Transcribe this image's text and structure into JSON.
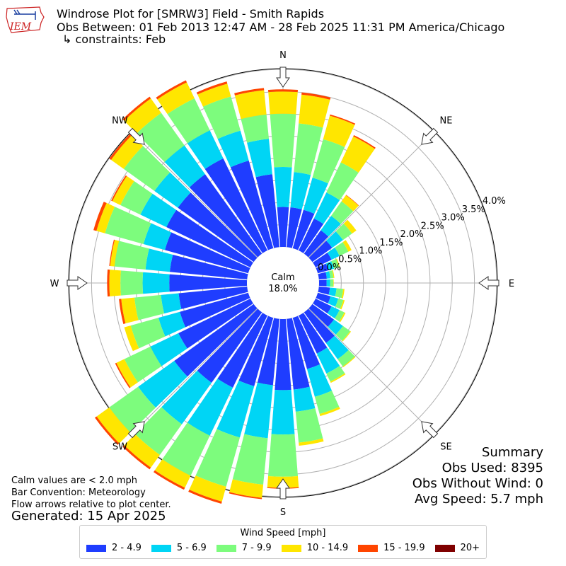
{
  "header": {
    "title": "Windrose Plot for [SMRW3] Field - Smith Rapids",
    "obs_between": "Obs Between: 01 Feb 2013 12:47 AM - 28 Feb 2025 11:31 PM America/Chicago",
    "constraints": "↳ constraints: Feb",
    "logo_text": "IEM"
  },
  "summary": {
    "heading": "Summary",
    "obs_used": "Obs Used: 8395",
    "obs_without_wind": "Obs Without Wind: 0",
    "avg_speed": "Avg Speed: 5.7 mph"
  },
  "notes": {
    "calm_def": "Calm values are < 2.0 mph",
    "bar_convention": "Bar Convention: Meteorology",
    "flow_arrows": "Flow arrows relative to plot center.",
    "generated": "Generated: 15 Apr 2025"
  },
  "colors": {
    "background": "#ffffff",
    "grid": "#b0b0b0",
    "arrow_fill": "#ffffff",
    "arrow_stroke": "#333333",
    "logo_red": "#cc2222",
    "logo_blue": "#1a3fa0"
  },
  "chart_data": {
    "type": "windrose",
    "calm_label": "Calm",
    "calm_value": "18.0%",
    "radial_unit": "percent",
    "radial_ticks": [
      "0.0%",
      "0.5%",
      "1.0%",
      "1.5%",
      "2.0%",
      "2.5%",
      "3.0%",
      "3.5%",
      "4.0%"
    ],
    "radial_max": 4.0,
    "compass_labels": [
      "N",
      "NE",
      "E",
      "SE",
      "S",
      "SW",
      "W",
      "NW"
    ],
    "direction_count": 36,
    "direction_start_deg": 0,
    "direction_step_deg": 10,
    "legend_title": "Wind Speed [mph]",
    "bins": [
      {
        "label": "2 - 4.9",
        "color": "#1f3dff"
      },
      {
        "label": "5 - 6.9",
        "color": "#00d5f5"
      },
      {
        "label": "7 - 9.9",
        "color": "#7dfc7d"
      },
      {
        "label": "10 - 14.9",
        "color": "#ffe600"
      },
      {
        "label": "15 - 19.9",
        "color": "#ff4500"
      },
      {
        "label": "20+",
        "color": "#7f0000"
      }
    ],
    "cumulative_percent": [
      [
        0.9,
        1.8,
        3.0,
        3.5,
        3.55,
        3.55
      ],
      [
        0.9,
        1.7,
        2.8,
        3.45,
        3.5,
        3.5
      ],
      [
        0.9,
        1.65,
        2.55,
        3.1,
        3.13,
        3.13
      ],
      [
        0.8,
        1.45,
        2.2,
        2.85,
        2.88,
        2.88
      ],
      [
        0.65,
        1.05,
        1.45,
        1.62,
        1.63,
        1.63
      ],
      [
        0.55,
        0.85,
        1.1,
        1.22,
        1.22,
        1.22
      ],
      [
        0.4,
        0.6,
        0.82,
        0.9,
        0.9,
        0.9
      ],
      [
        0.25,
        0.38,
        0.5,
        0.52,
        0.52,
        0.52
      ],
      [
        0.18,
        0.26,
        0.33,
        0.35,
        0.35,
        0.35
      ],
      [
        0.17,
        0.25,
        0.32,
        0.33,
        0.33,
        0.33
      ],
      [
        0.25,
        0.4,
        0.55,
        0.58,
        0.58,
        0.58
      ],
      [
        0.3,
        0.48,
        0.6,
        0.63,
        0.63,
        0.63
      ],
      [
        0.4,
        0.6,
        0.72,
        0.75,
        0.75,
        0.75
      ],
      [
        0.6,
        0.85,
        1.05,
        1.07,
        1.07,
        1.07
      ],
      [
        0.85,
        1.3,
        1.5,
        1.52,
        1.52,
        1.52
      ],
      [
        0.95,
        1.45,
        1.65,
        1.68,
        1.68,
        1.68
      ],
      [
        1.2,
        1.85,
        2.25,
        2.3,
        2.3,
        2.3
      ],
      [
        1.6,
        2.1,
        2.8,
        2.87,
        2.87,
        2.87
      ],
      [
        1.6,
        2.6,
        3.55,
        3.8,
        3.82,
        3.82
      ],
      [
        1.5,
        2.7,
        3.75,
        4.05,
        4.08,
        4.08
      ],
      [
        1.6,
        2.8,
        3.95,
        4.3,
        4.35,
        4.35
      ],
      [
        1.8,
        3.0,
        4.0,
        4.3,
        4.35,
        4.35
      ],
      [
        1.95,
        3.1,
        3.95,
        4.3,
        4.35,
        4.35
      ],
      [
        2.2,
        3.2,
        4.0,
        4.35,
        4.4,
        4.4
      ],
      [
        1.8,
        2.5,
        3.15,
        3.35,
        3.38,
        3.38
      ],
      [
        1.6,
        2.1,
        2.75,
        2.9,
        2.9,
        2.9
      ],
      [
        1.55,
        1.95,
        2.55,
        2.85,
        2.9,
        2.9
      ],
      [
        1.75,
        2.35,
        2.85,
        3.1,
        3.15,
        3.15
      ],
      [
        1.75,
        2.3,
        3.0,
        3.1,
        3.12,
        3.12
      ],
      [
        1.95,
        2.45,
        3.35,
        3.55,
        3.62,
        3.62
      ],
      [
        2.1,
        2.75,
        3.25,
        3.45,
        3.48,
        3.48
      ],
      [
        2.1,
        2.75,
        3.6,
        3.95,
        4.0,
        4.0
      ],
      [
        2.2,
        3.0,
        3.9,
        4.3,
        4.35,
        4.35
      ],
      [
        2.3,
        3.0,
        3.8,
        4.2,
        4.25,
        4.25
      ],
      [
        2.05,
        2.75,
        3.55,
        3.85,
        3.9,
        3.9
      ],
      [
        1.65,
        2.45,
        3.0,
        3.55,
        3.6,
        3.6
      ]
    ]
  }
}
